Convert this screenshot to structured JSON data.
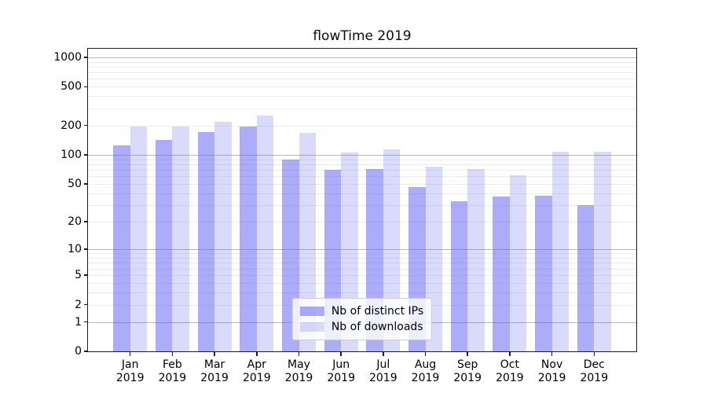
{
  "title": "flowTime 2019",
  "chart_data": {
    "type": "bar",
    "title": "flowTime 2019",
    "categories": [
      "Jan",
      "Feb",
      "Mar",
      "Apr",
      "May",
      "Jun",
      "Jul",
      "Aug",
      "Sep",
      "Oct",
      "Nov",
      "Dec"
    ],
    "x_tick_second_line": "2019",
    "series": [
      {
        "name": "Nb of distinct IPs",
        "color": "rgba(85,85,246,0.49)",
        "solid_color": "#acacfa",
        "values": [
          126,
          142,
          172,
          197,
          89,
          70,
          71,
          46,
          33,
          37,
          38,
          30
        ]
      },
      {
        "name": "Nb of downloads",
        "color": "rgba(85,85,246,0.22)",
        "solid_color": "#dadafa",
        "values": [
          195,
          194,
          217,
          252,
          168,
          106,
          115,
          75,
          72,
          61,
          108,
          107
        ]
      }
    ],
    "yscale": "log1p",
    "ylim": [
      0,
      1220
    ],
    "ytick_labels": [
      "1000",
      "500",
      "200",
      "100",
      "50",
      "20",
      "10",
      "5",
      "2",
      "1",
      "0"
    ],
    "major_gridlines": [
      1000,
      100,
      10,
      1
    ],
    "minor_gridlines": [
      900,
      800,
      700,
      600,
      500,
      400,
      300,
      200,
      90,
      80,
      70,
      60,
      50,
      40,
      30,
      20,
      9,
      8,
      7,
      6,
      5,
      4,
      3,
      2
    ],
    "grid": true,
    "legend_position": "lower center",
    "gridline_major_color": "#b8b8b8",
    "gridline_minor_color": "#ececec"
  }
}
